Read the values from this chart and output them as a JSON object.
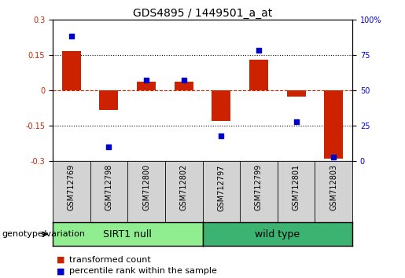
{
  "title": "GDS4895 / 1449501_a_at",
  "samples": [
    "GSM712769",
    "GSM712798",
    "GSM712800",
    "GSM712802",
    "GSM712797",
    "GSM712799",
    "GSM712801",
    "GSM712803"
  ],
  "red_bars": [
    0.165,
    -0.082,
    0.038,
    0.038,
    -0.13,
    0.13,
    -0.028,
    -0.29
  ],
  "blue_dots": [
    88,
    10,
    57,
    57,
    18,
    78,
    28,
    3
  ],
  "ylim": [
    -0.3,
    0.3
  ],
  "right_ylim": [
    0,
    100
  ],
  "yticks_left": [
    -0.3,
    -0.15,
    0,
    0.15,
    0.3
  ],
  "yticks_right": [
    0,
    25,
    50,
    75,
    100
  ],
  "right_tick_labels": [
    "0",
    "25",
    "50",
    "75",
    "100%"
  ],
  "hlines": [
    0.15,
    -0.15
  ],
  "group1_label": "SIRT1 null",
  "group2_label": "wild type",
  "group1_color": "#90ee90",
  "group2_color": "#3cb371",
  "bar_color": "#cc2200",
  "dot_color": "#0000cc",
  "zero_line_color": "#cc2200",
  "hline_color": "#000000",
  "bg_color": "#d3d3d3",
  "title_fontsize": 10,
  "tick_fontsize": 7,
  "label_fontsize": 8,
  "group_label_fontsize": 9,
  "legend_fontsize": 8,
  "bar_width": 0.5,
  "dot_size": 25,
  "n_group1": 4,
  "n_group2": 4
}
